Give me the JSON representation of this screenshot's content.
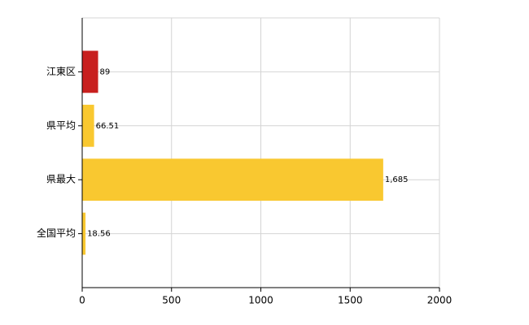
{
  "chart_data": {
    "type": "barh",
    "categories": [
      "江東区",
      "県平均",
      "県最大",
      "全国平均"
    ],
    "values": [
      89,
      66.51,
      1685,
      18.56
    ],
    "value_labels": [
      "89",
      "66.51",
      "1,685",
      "18.56"
    ],
    "colors": [
      "#c8201f",
      "#f9c830",
      "#f9c830",
      "#f9c830"
    ],
    "xlim": [
      0,
      2000
    ],
    "xticks": [
      0,
      500,
      1000,
      1500,
      2000
    ],
    "grid": true
  }
}
